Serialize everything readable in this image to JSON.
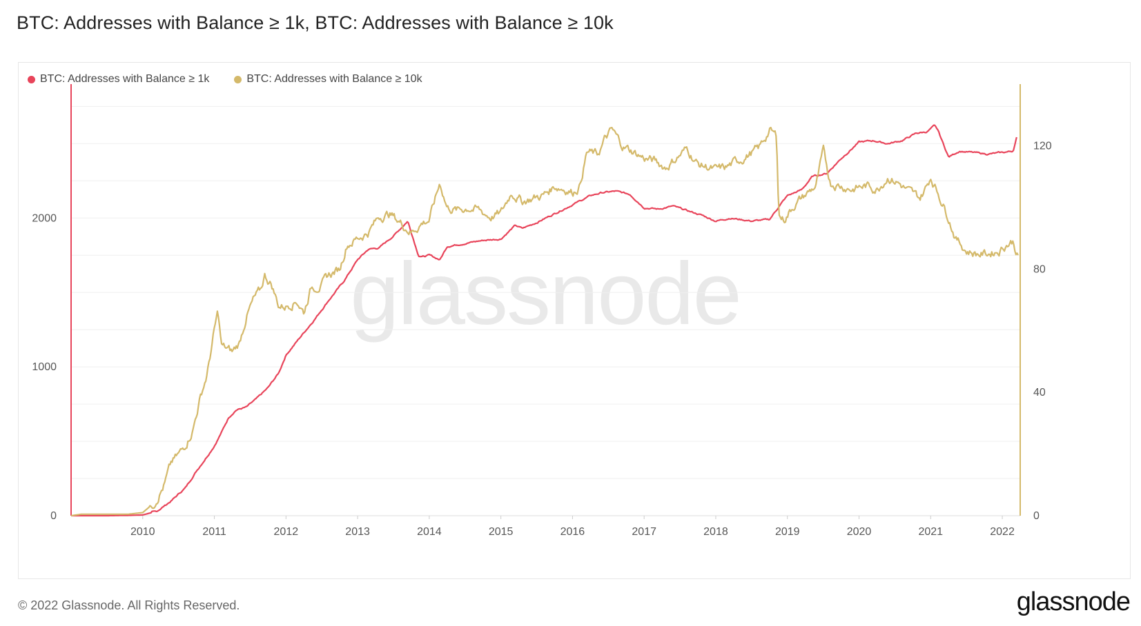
{
  "header": {
    "title": "BTC: Addresses with Balance ≥ 1k, BTC: Addresses with Balance ≥ 10k"
  },
  "footer": {
    "copyright": "© 2022 Glassnode. All Rights Reserved.",
    "logo": "glassnode"
  },
  "watermark": "glassnode",
  "chart_data": {
    "type": "line",
    "title": "BTC: Addresses with Balance ≥ 1k, BTC: Addresses with Balance ≥ 10k",
    "xlabel": "",
    "ylabel": "",
    "legend_position": "top-left",
    "grid": "horizontal",
    "x_ticks": [
      "2010",
      "2011",
      "2012",
      "2013",
      "2014",
      "2015",
      "2016",
      "2017",
      "2018",
      "2019",
      "2020",
      "2021",
      "2022"
    ],
    "x_range": [
      2009.0,
      2022.25
    ],
    "y_left": {
      "ticks": [
        "0",
        "1000",
        "2000"
      ],
      "lim": [
        0,
        2900
      ]
    },
    "y_right": {
      "ticks": [
        "0",
        "40",
        "80",
        "120"
      ],
      "lim": [
        0,
        140
      ]
    },
    "series": [
      {
        "name": "BTC: Addresses with Balance ≥ 1k",
        "color": "#e8445a",
        "axis": "left",
        "x": [
          2009.0,
          2009.5,
          2009.8,
          2010.0,
          2010.2,
          2010.4,
          2010.6,
          2010.75,
          2010.9,
          2011.0,
          2011.1,
          2011.2,
          2011.3,
          2011.45,
          2011.6,
          2011.75,
          2011.9,
          2012.0,
          2012.2,
          2012.4,
          2012.6,
          2012.8,
          2013.0,
          2013.15,
          2013.3,
          2013.5,
          2013.7,
          2013.85,
          2013.9,
          2014.0,
          2014.15,
          2014.25,
          2014.5,
          2014.75,
          2015.0,
          2015.2,
          2015.3,
          2015.5,
          2015.75,
          2016.0,
          2016.25,
          2016.4,
          2016.6,
          2016.8,
          2017.0,
          2017.2,
          2017.4,
          2017.6,
          2017.8,
          2018.0,
          2018.2,
          2018.5,
          2018.75,
          2018.9,
          2019.0,
          2019.2,
          2019.35,
          2019.55,
          2019.75,
          2020.0,
          2020.2,
          2020.4,
          2020.6,
          2020.8,
          2020.95,
          2021.05,
          2021.1,
          2021.25,
          2021.4,
          2021.6,
          2021.8,
          2022.0,
          2022.15,
          2022.2
        ],
        "values": [
          0,
          0,
          2,
          5,
          30,
          100,
          190,
          300,
          400,
          470,
          560,
          660,
          710,
          730,
          790,
          860,
          960,
          1080,
          1200,
          1320,
          1450,
          1570,
          1720,
          1790,
          1800,
          1880,
          1980,
          1750,
          1740,
          1750,
          1720,
          1810,
          1830,
          1850,
          1860,
          1950,
          1930,
          1970,
          2030,
          2090,
          2150,
          2170,
          2180,
          2160,
          2070,
          2060,
          2080,
          2050,
          2020,
          1980,
          2000,
          1980,
          1990,
          2090,
          2150,
          2190,
          2280,
          2300,
          2400,
          2510,
          2520,
          2500,
          2520,
          2570,
          2580,
          2620,
          2590,
          2410,
          2450,
          2440,
          2430,
          2440,
          2450,
          2540
        ]
      },
      {
        "name": "BTC: Addresses with Balance ≥ 10k",
        "color": "#d4b96a",
        "axis": "right",
        "x": [
          2009.0,
          2009.15,
          2009.3,
          2009.5,
          2009.8,
          2010.0,
          2010.15,
          2010.3,
          2010.4,
          2010.55,
          2010.7,
          2010.8,
          2010.9,
          2011.0,
          2011.05,
          2011.1,
          2011.25,
          2011.35,
          2011.45,
          2011.55,
          2011.65,
          2011.7,
          2011.8,
          2011.9,
          2012.0,
          2012.15,
          2012.25,
          2012.35,
          2012.5,
          2012.6,
          2012.75,
          2012.85,
          2013.0,
          2013.15,
          2013.3,
          2013.45,
          2013.6,
          2013.75,
          2013.9,
          2014.0,
          2014.1,
          2014.15,
          2014.25,
          2014.4,
          2014.55,
          2014.7,
          2014.85,
          2015.0,
          2015.15,
          2015.3,
          2015.45,
          2015.6,
          2015.75,
          2015.9,
          2016.0,
          2016.1,
          2016.2,
          2016.35,
          2016.45,
          2016.55,
          2016.7,
          2016.85,
          2017.0,
          2017.15,
          2017.3,
          2017.45,
          2017.6,
          2017.75,
          2017.9,
          2018.0,
          2018.15,
          2018.3,
          2018.45,
          2018.6,
          2018.75,
          2018.85,
          2018.88,
          2018.95,
          2019.1,
          2019.25,
          2019.4,
          2019.5,
          2019.6,
          2019.75,
          2019.9,
          2020.1,
          2020.25,
          2020.4,
          2020.55,
          2020.7,
          2020.85,
          2020.95,
          2021.0,
          2021.1,
          2021.25,
          2021.35,
          2021.5,
          2021.65,
          2021.8,
          2021.95,
          2022.05,
          2022.15,
          2022.22
        ],
        "values": [
          0,
          0.5,
          0.5,
          0.5,
          0.5,
          1,
          4,
          10,
          17,
          21,
          28,
          38,
          46,
          60,
          66,
          55,
          53,
          56,
          65,
          70,
          73,
          78,
          75,
          68,
          68,
          70,
          66,
          74,
          75,
          78,
          80,
          88,
          90,
          92,
          97,
          98,
          95,
          92,
          95,
          96,
          104,
          108,
          100,
          99,
          100,
          99,
          97,
          98,
          105,
          102,
          103,
          104,
          107,
          106,
          105,
          107,
          118,
          117,
          122,
          125,
          120,
          118,
          116,
          115,
          113,
          116,
          119,
          114,
          113,
          112,
          113,
          115,
          117,
          119,
          125,
          123,
          98,
          96,
          101,
          104,
          107,
          118,
          108,
          107,
          106,
          107,
          106,
          110,
          108,
          105,
          103,
          107,
          110,
          105,
          97,
          90,
          86,
          85,
          85,
          86,
          88,
          89,
          84
        ]
      }
    ]
  }
}
